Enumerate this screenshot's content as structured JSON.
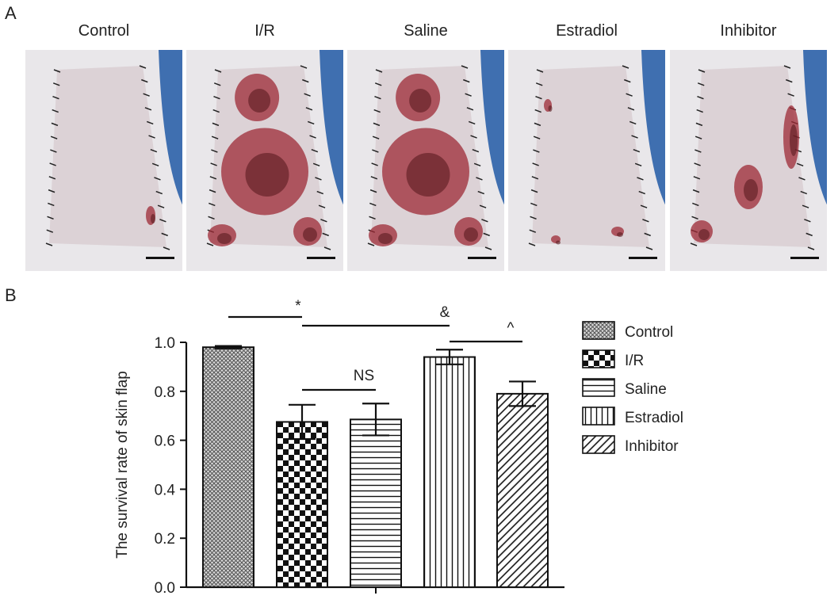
{
  "panel_a": {
    "letter": "A",
    "photos": [
      {
        "title": "Control",
        "wound": "none"
      },
      {
        "title": "I/R",
        "wound": "severe"
      },
      {
        "title": "Saline",
        "wound": "severe"
      },
      {
        "title": "Estradiol",
        "wound": "mild"
      },
      {
        "title": "Inhibitor",
        "wound": "moderate"
      }
    ]
  },
  "panel_b": {
    "letter": "B"
  },
  "chart_data": {
    "type": "bar",
    "title": "",
    "xlabel": "",
    "ylabel": "The survival rate of skin flap",
    "ylim": [
      0.0,
      1.0
    ],
    "yticks": [
      "0.0",
      "0.2",
      "0.4",
      "0.6",
      "0.8",
      "1.0"
    ],
    "categories": [
      "Control",
      "I/R",
      "Saline",
      "Estradiol",
      "Inhibitor"
    ],
    "values": [
      0.98,
      0.675,
      0.685,
      0.94,
      0.79
    ],
    "errors": [
      0.005,
      0.07,
      0.065,
      0.03,
      0.05
    ],
    "patterns": [
      "fine-crosshatch",
      "checker",
      "horizontal-lines",
      "vertical-lines",
      "diagonal-lines"
    ],
    "legend_position": "right",
    "annotations": [
      {
        "label": "*",
        "from": "Control",
        "to": "I/R"
      },
      {
        "label": "NS",
        "from": "I/R",
        "to": "Saline"
      },
      {
        "label": "&",
        "from": "I/R",
        "to": "Estradiol"
      },
      {
        "label": "^",
        "from": "Estradiol",
        "to": "Inhibitor"
      }
    ]
  }
}
